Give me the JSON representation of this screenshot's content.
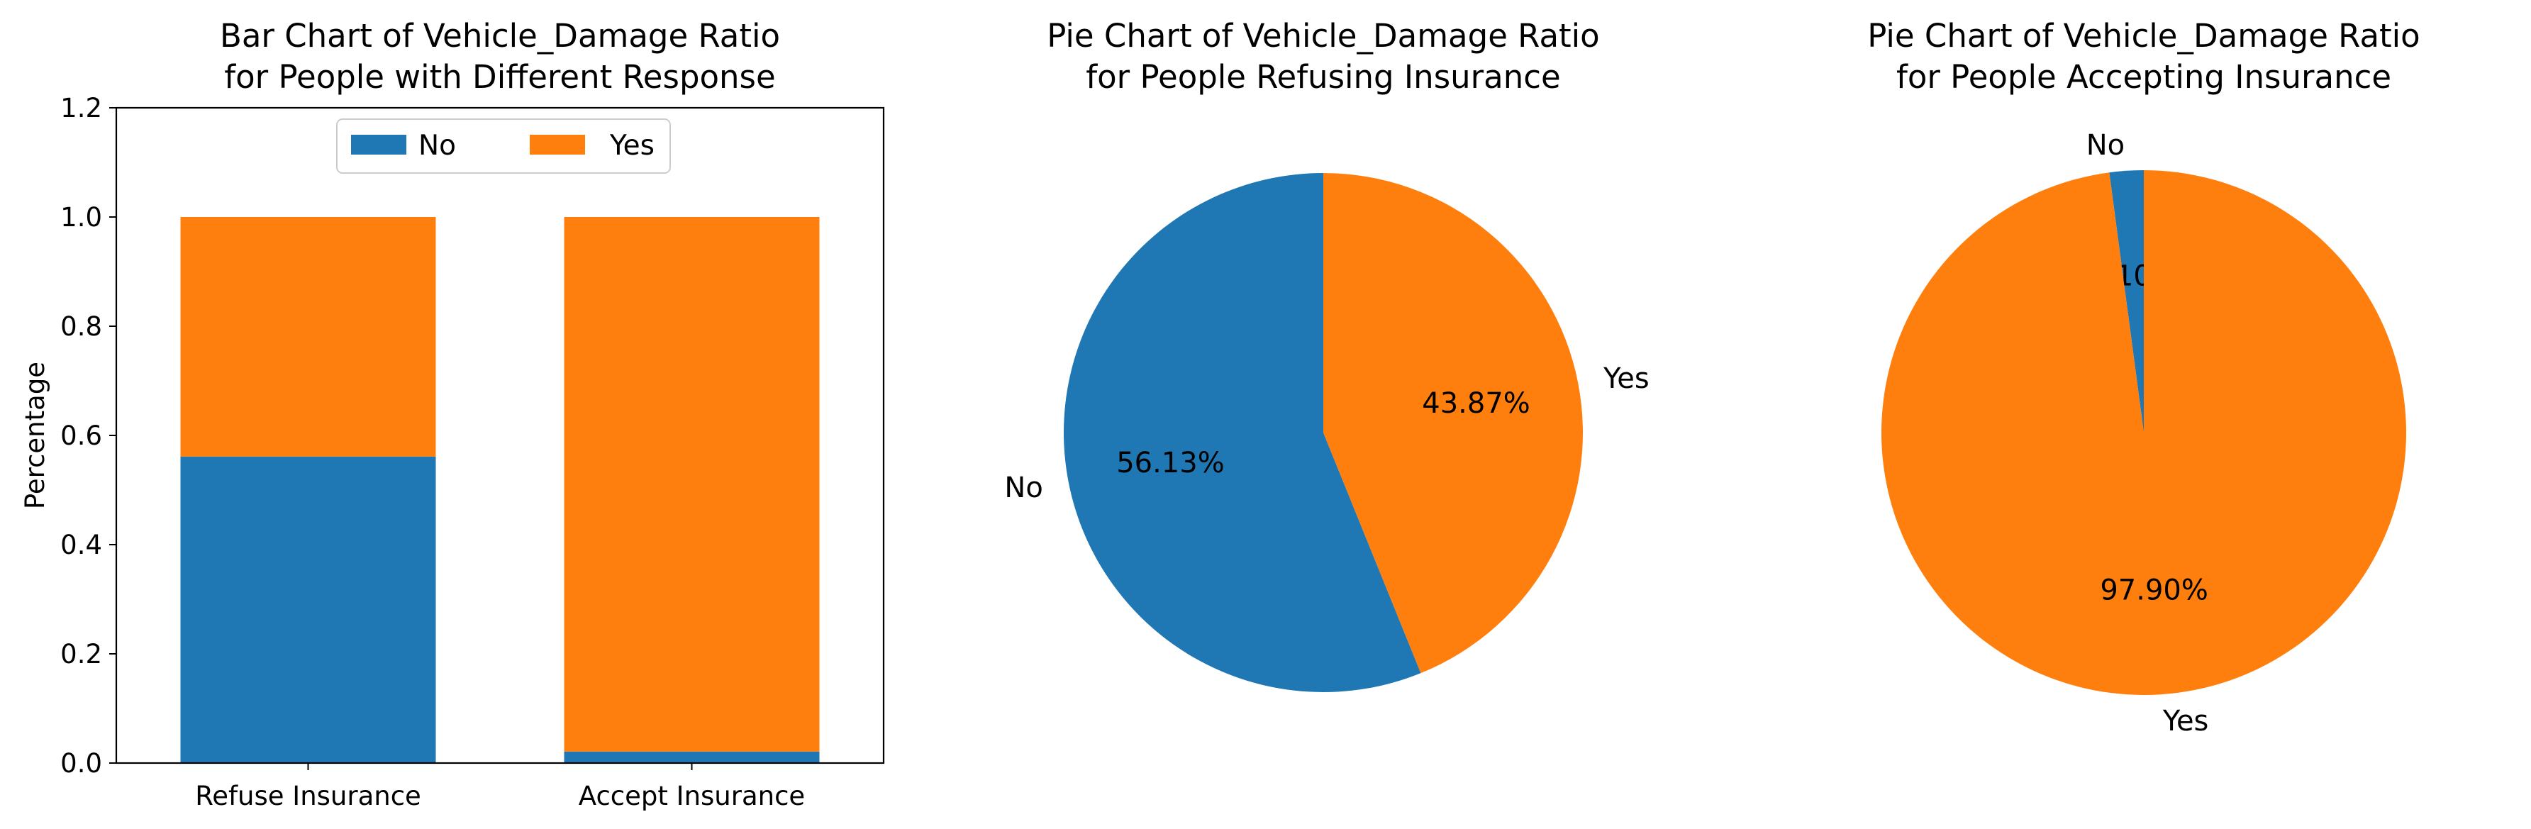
{
  "chart_data": [
    {
      "type": "bar",
      "stacked": true,
      "title": "Bar Chart of Vehicle_Damage Ratio\nfor People with Different Response",
      "xlabel": "",
      "ylabel": "Percentage",
      "categories": [
        "Refuse Insurance",
        "Accept Insurance"
      ],
      "series": [
        {
          "name": "No",
          "values": [
            0.5613,
            0.021
          ],
          "color": "#1f77b4"
        },
        {
          "name": "Yes",
          "values": [
            0.4387,
            0.979
          ],
          "color": "#ff7f0e"
        }
      ],
      "ylim": [
        0,
        1.2
      ],
      "yticks": [
        "0.0",
        "0.2",
        "0.4",
        "0.6",
        "0.8",
        "1.0",
        "1.2"
      ],
      "grid": false,
      "legend": "upper-center"
    },
    {
      "type": "pie",
      "title": "Pie Chart of Vehicle_Damage Ratio\nfor People Refusing Insurance",
      "labels": [
        "No",
        "Yes"
      ],
      "values": [
        56.13,
        43.87
      ],
      "autopct": [
        "56.13%",
        "43.87%"
      ],
      "colors": [
        "#1f77b4",
        "#ff7f0e"
      ],
      "startangle": 90
    },
    {
      "type": "pie",
      "title": "Pie Chart of Vehicle_Damage Ratio\nfor People Accepting Insurance",
      "labels": [
        "No",
        "Yes"
      ],
      "values": [
        2.1,
        97.9
      ],
      "autopct": [
        "2.10%",
        "97.90%"
      ],
      "colors": [
        "#1f77b4",
        "#ff7f0e"
      ],
      "startangle": 90
    }
  ]
}
